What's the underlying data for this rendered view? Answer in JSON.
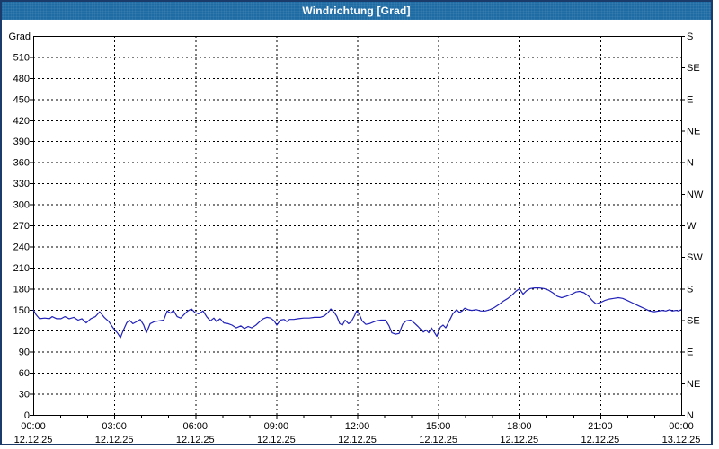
{
  "window": {
    "title": "Windrichtung [Grad]"
  },
  "colors": {
    "titlebar_bg": "#1f6ca5",
    "titlebar_text": "#ffffff",
    "window_border": "#1b3c6b",
    "plot_background": "#ffffff",
    "axis": "#000000",
    "grid": "#000000",
    "series_line": "#2222bb",
    "label_text": "#000000"
  },
  "chart_data": {
    "type": "line",
    "title": "Windrichtung [Grad]",
    "grid": {
      "style": "dashed",
      "horizontal_step_grad": 30,
      "vertical_step_hours": 3
    },
    "y_axis_left": {
      "unit_label": "Grad",
      "range": [
        0,
        540
      ],
      "tick_step": 30,
      "ticks": [
        0,
        30,
        60,
        90,
        120,
        150,
        180,
        210,
        240,
        270,
        300,
        330,
        360,
        390,
        420,
        450,
        480,
        510
      ]
    },
    "y_axis_right": {
      "labels": [
        {
          "value": 0,
          "label": "N"
        },
        {
          "value": 45,
          "label": "NE"
        },
        {
          "value": 90,
          "label": "E"
        },
        {
          "value": 135,
          "label": "SE"
        },
        {
          "value": 180,
          "label": "S"
        },
        {
          "value": 225,
          "label": "SW"
        },
        {
          "value": 270,
          "label": "W"
        },
        {
          "value": 315,
          "label": "NW"
        },
        {
          "value": 360,
          "label": "N"
        },
        {
          "value": 405,
          "label": "NE"
        },
        {
          "value": 450,
          "label": "E"
        },
        {
          "value": 495,
          "label": "SE"
        },
        {
          "value": 540,
          "label": "S"
        }
      ]
    },
    "x_axis": {
      "range_hours": [
        0,
        24
      ],
      "minor_tick_hours": 1,
      "ticks": [
        {
          "hour": 0,
          "time": "00:00",
          "date": "12.12.25"
        },
        {
          "hour": 3,
          "time": "03:00",
          "date": "12.12.25"
        },
        {
          "hour": 6,
          "time": "06:00",
          "date": "12.12.25"
        },
        {
          "hour": 9,
          "time": "09:00",
          "date": "12.12.25"
        },
        {
          "hour": 12,
          "time": "12:00",
          "date": "12.12.25"
        },
        {
          "hour": 15,
          "time": "15:00",
          "date": "12.12.25"
        },
        {
          "hour": 18,
          "time": "18:00",
          "date": "12.12.25"
        },
        {
          "hour": 21,
          "time": "21:00",
          "date": "12.12.25"
        },
        {
          "hour": 24,
          "time": "00:00",
          "date": "13.12.25"
        }
      ]
    },
    "series": [
      {
        "name": "Windrichtung",
        "color": "#2222bb",
        "points": [
          [
            0,
            150
          ],
          [
            0.1,
            143
          ],
          [
            0.23,
            137
          ],
          [
            0.43,
            138
          ],
          [
            0.6,
            137
          ],
          [
            0.7,
            140
          ],
          [
            0.87,
            137
          ],
          [
            1.03,
            137
          ],
          [
            1.17,
            140
          ],
          [
            1.33,
            137
          ],
          [
            1.5,
            139
          ],
          [
            1.66,
            135
          ],
          [
            1.8,
            137
          ],
          [
            1.96,
            131
          ],
          [
            2.13,
            137
          ],
          [
            2.3,
            140
          ],
          [
            2.46,
            147
          ],
          [
            2.63,
            139
          ],
          [
            2.8,
            133
          ],
          [
            2.96,
            124
          ],
          [
            3.13,
            116
          ],
          [
            3.23,
            110
          ],
          [
            3.33,
            120
          ],
          [
            3.46,
            131
          ],
          [
            3.56,
            135
          ],
          [
            3.69,
            130
          ],
          [
            3.83,
            133
          ],
          [
            3.96,
            136
          ],
          [
            4.09,
            128
          ],
          [
            4.19,
            117
          ],
          [
            4.33,
            130
          ],
          [
            4.49,
            133
          ],
          [
            4.66,
            134
          ],
          [
            4.83,
            135
          ],
          [
            4.96,
            148
          ],
          [
            5.09,
            145
          ],
          [
            5.19,
            149
          ],
          [
            5.33,
            140
          ],
          [
            5.46,
            138
          ],
          [
            5.59,
            143
          ],
          [
            5.72,
            148
          ],
          [
            5.86,
            151
          ],
          [
            5.99,
            146
          ],
          [
            6.12,
            144
          ],
          [
            6.29,
            148
          ],
          [
            6.42,
            140
          ],
          [
            6.56,
            134
          ],
          [
            6.69,
            138
          ],
          [
            6.79,
            133
          ],
          [
            6.92,
            137
          ],
          [
            7.06,
            131
          ],
          [
            7.22,
            130
          ],
          [
            7.36,
            128
          ],
          [
            7.52,
            124
          ],
          [
            7.69,
            127
          ],
          [
            7.82,
            123
          ],
          [
            7.96,
            126
          ],
          [
            8.09,
            124
          ],
          [
            8.25,
            128
          ],
          [
            8.39,
            133
          ],
          [
            8.52,
            137
          ],
          [
            8.65,
            139
          ],
          [
            8.79,
            138
          ],
          [
            8.92,
            134
          ],
          [
            9.02,
            128
          ],
          [
            9.15,
            135
          ],
          [
            9.29,
            136
          ],
          [
            9.39,
            133
          ],
          [
            9.49,
            136
          ],
          [
            9.65,
            136
          ],
          [
            9.82,
            137
          ],
          [
            10.02,
            138
          ],
          [
            10.22,
            138
          ],
          [
            10.42,
            139
          ],
          [
            10.62,
            139
          ],
          [
            10.78,
            141
          ],
          [
            10.92,
            146
          ],
          [
            11.02,
            151
          ],
          [
            11.15,
            146
          ],
          [
            11.25,
            140
          ],
          [
            11.35,
            130
          ],
          [
            11.45,
            128
          ],
          [
            11.55,
            135
          ],
          [
            11.68,
            130
          ],
          [
            11.78,
            133
          ],
          [
            11.88,
            140
          ],
          [
            11.98,
            148
          ],
          [
            12.08,
            143
          ],
          [
            12.18,
            134
          ],
          [
            12.32,
            129
          ],
          [
            12.45,
            130
          ],
          [
            12.58,
            132
          ],
          [
            12.71,
            134
          ],
          [
            12.88,
            135
          ],
          [
            13.05,
            135
          ],
          [
            13.18,
            127
          ],
          [
            13.28,
            117
          ],
          [
            13.41,
            115
          ],
          [
            13.55,
            116
          ],
          [
            13.68,
            129
          ],
          [
            13.81,
            134
          ],
          [
            13.98,
            135
          ],
          [
            14.11,
            131
          ],
          [
            14.25,
            126
          ],
          [
            14.35,
            122
          ],
          [
            14.45,
            118
          ],
          [
            14.55,
            121
          ],
          [
            14.65,
            117
          ],
          [
            14.75,
            124
          ],
          [
            14.85,
            118
          ],
          [
            14.95,
            112
          ],
          [
            15.08,
            125
          ],
          [
            15.18,
            128
          ],
          [
            15.28,
            124
          ],
          [
            15.41,
            134
          ],
          [
            15.54,
            144
          ],
          [
            15.68,
            150
          ],
          [
            15.78,
            146
          ],
          [
            15.88,
            148
          ],
          [
            15.98,
            152
          ],
          [
            16.11,
            150
          ],
          [
            16.24,
            149
          ],
          [
            16.41,
            150
          ],
          [
            16.58,
            148
          ],
          [
            16.74,
            148
          ],
          [
            16.91,
            150
          ],
          [
            17.08,
            153
          ],
          [
            17.24,
            157
          ],
          [
            17.41,
            162
          ],
          [
            17.58,
            166
          ],
          [
            17.74,
            171
          ],
          [
            17.87,
            176
          ],
          [
            18.01,
            180
          ],
          [
            18.14,
            172
          ],
          [
            18.27,
            177
          ],
          [
            18.41,
            180
          ],
          [
            18.57,
            181
          ],
          [
            18.74,
            181
          ],
          [
            18.91,
            180
          ],
          [
            19.07,
            178
          ],
          [
            19.24,
            174
          ],
          [
            19.41,
            169
          ],
          [
            19.57,
            167
          ],
          [
            19.74,
            169
          ],
          [
            19.94,
            172
          ],
          [
            20.1,
            175
          ],
          [
            20.24,
            176
          ],
          [
            20.4,
            174
          ],
          [
            20.57,
            169
          ],
          [
            20.7,
            163
          ],
          [
            20.84,
            158
          ],
          [
            21,
            160
          ],
          [
            21.17,
            163
          ],
          [
            21.33,
            165
          ],
          [
            21.5,
            166
          ],
          [
            21.67,
            167
          ],
          [
            21.83,
            166
          ],
          [
            22,
            163
          ],
          [
            22.17,
            160
          ],
          [
            22.33,
            157
          ],
          [
            22.5,
            154
          ],
          [
            22.67,
            151
          ],
          [
            22.83,
            148
          ],
          [
            23,
            147
          ],
          [
            23.17,
            148
          ],
          [
            23.3,
            149
          ],
          [
            23.43,
            148
          ],
          [
            23.57,
            150
          ],
          [
            23.67,
            148
          ],
          [
            23.8,
            149
          ],
          [
            23.9,
            148
          ],
          [
            24,
            150
          ]
        ]
      }
    ]
  }
}
